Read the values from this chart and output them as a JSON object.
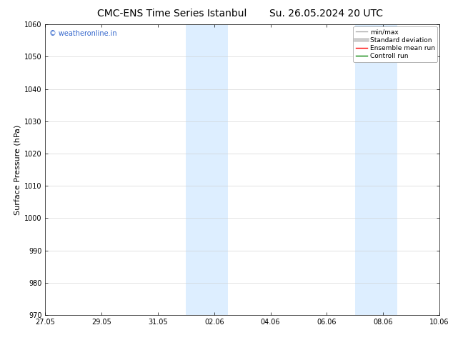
{
  "title_left": "CMC-ENS Time Series Istanbul",
  "title_right": "Su. 26.05.2024 20 UTC",
  "ylabel": "Surface Pressure (hPa)",
  "ylim": [
    970,
    1060
  ],
  "yticks": [
    970,
    980,
    990,
    1000,
    1010,
    1020,
    1030,
    1040,
    1050,
    1060
  ],
  "xlim": [
    0,
    14
  ],
  "xtick_labels": [
    "27.05",
    "29.05",
    "31.05",
    "02.06",
    "04.06",
    "06.06",
    "08.06",
    "10.06"
  ],
  "xtick_positions": [
    0,
    2,
    4,
    6,
    8,
    10,
    12,
    14
  ],
  "shaded_bands": [
    {
      "x_start": 5.0,
      "x_end": 6.5
    },
    {
      "x_start": 11.0,
      "x_end": 12.5
    }
  ],
  "shaded_color": "#ddeeff",
  "watermark_text": "© weatheronline.in",
  "watermark_color": "#3366cc",
  "legend_items": [
    {
      "label": "min/max",
      "color": "#aaaaaa",
      "lw": 1.0,
      "style": "-"
    },
    {
      "label": "Standard deviation",
      "color": "#cccccc",
      "lw": 4.0,
      "style": "-"
    },
    {
      "label": "Ensemble mean run",
      "color": "red",
      "lw": 1.0,
      "style": "-"
    },
    {
      "label": "Controll run",
      "color": "green",
      "lw": 1.0,
      "style": "-"
    }
  ],
  "bg_color": "#ffffff",
  "grid_color": "#cccccc",
  "title_fontsize": 10,
  "ylabel_fontsize": 8,
  "tick_fontsize": 7,
  "watermark_fontsize": 7,
  "legend_fontsize": 6.5
}
